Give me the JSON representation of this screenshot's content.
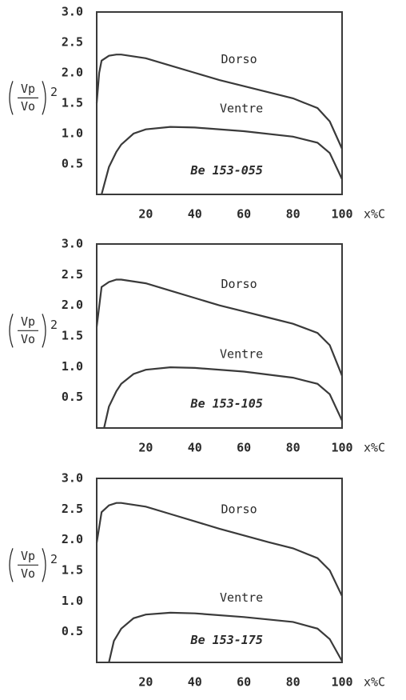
{
  "chart_data": [
    {
      "type": "line",
      "ylabel": {
        "numerator": "Vp",
        "denominator": "Vo",
        "exponent": "2"
      },
      "xlabel": "x%C",
      "annotation": "Be 153-055",
      "xlim": [
        0,
        100
      ],
      "xticks": [
        20,
        40,
        60,
        80,
        100
      ],
      "ylim": [
        0,
        3
      ],
      "yticks": [
        0.5,
        {
          "value": 1,
          "label": "1.0"
        },
        1.5,
        {
          "value": 2,
          "label": "2.0"
        },
        2.5,
        {
          "value": 3,
          "label": "3.0"
        }
      ],
      "series": [
        {
          "name": "Dorso",
          "color": "#3a3a3a",
          "x": [
            0,
            1,
            2,
            5,
            8,
            10,
            20,
            30,
            40,
            50,
            60,
            70,
            80,
            90,
            95,
            100
          ],
          "values": [
            1.5,
            2.0,
            2.2,
            2.28,
            2.3,
            2.3,
            2.24,
            2.12,
            2.0,
            1.88,
            1.78,
            1.68,
            1.58,
            1.42,
            1.2,
            0.75
          ]
        },
        {
          "name": "Ventre",
          "color": "#3a3a3a",
          "x": [
            2,
            5,
            8,
            10,
            15,
            20,
            30,
            40,
            60,
            80,
            90,
            95,
            100
          ],
          "values": [
            0,
            0.45,
            0.7,
            0.82,
            1.0,
            1.07,
            1.11,
            1.1,
            1.04,
            0.95,
            0.85,
            0.68,
            0.25
          ]
        }
      ]
    },
    {
      "type": "line",
      "ylabel": {
        "numerator": "Vp",
        "denominator": "Vo",
        "exponent": "2"
      },
      "xlabel": "x%C",
      "annotation": "Be 153-105",
      "xlim": [
        0,
        100
      ],
      "xticks": [
        20,
        40,
        60,
        80,
        100
      ],
      "ylim": [
        0,
        3
      ],
      "yticks": [
        0.5,
        {
          "value": 1,
          "label": "1.0"
        },
        1.5,
        {
          "value": 2,
          "label": "2.0"
        },
        2.5,
        {
          "value": 3,
          "label": "3.0"
        }
      ],
      "series": [
        {
          "name": "Dorso",
          "color": "#3a3a3a",
          "x": [
            0,
            2,
            5,
            8,
            10,
            20,
            30,
            40,
            50,
            60,
            70,
            80,
            90,
            95,
            100
          ],
          "values": [
            1.65,
            2.3,
            2.38,
            2.42,
            2.42,
            2.36,
            2.24,
            2.12,
            2.0,
            1.9,
            1.8,
            1.7,
            1.55,
            1.35,
            0.85
          ]
        },
        {
          "name": "Ventre",
          "color": "#3a3a3a",
          "x": [
            3,
            5,
            8,
            10,
            15,
            20,
            30,
            40,
            60,
            80,
            90,
            95,
            100
          ],
          "values": [
            0,
            0.35,
            0.6,
            0.72,
            0.88,
            0.95,
            0.99,
            0.98,
            0.92,
            0.82,
            0.72,
            0.55,
            0.12
          ]
        }
      ]
    },
    {
      "type": "line",
      "ylabel": {
        "numerator": "Vp",
        "denominator": "Vo",
        "exponent": "2"
      },
      "xlabel": "x%C",
      "annotation": "Be 153-175",
      "xlim": [
        0,
        100
      ],
      "xticks": [
        20,
        40,
        60,
        80,
        100
      ],
      "ylim": [
        0,
        3
      ],
      "yticks": [
        0.5,
        {
          "value": 1,
          "label": "1.0"
        },
        1.5,
        {
          "value": 2,
          "label": "2.0"
        },
        2.5,
        {
          "value": 3,
          "label": "3.0"
        }
      ],
      "series": [
        {
          "name": "Dorso",
          "color": "#3a3a3a",
          "x": [
            0,
            2,
            5,
            8,
            10,
            20,
            30,
            40,
            50,
            60,
            70,
            80,
            90,
            95,
            100
          ],
          "values": [
            1.95,
            2.45,
            2.56,
            2.6,
            2.6,
            2.54,
            2.42,
            2.3,
            2.18,
            2.07,
            1.96,
            1.86,
            1.7,
            1.5,
            1.08
          ]
        },
        {
          "name": "Ventre",
          "color": "#3a3a3a",
          "x": [
            5,
            7,
            10,
            15,
            20,
            30,
            40,
            60,
            80,
            90,
            95,
            100
          ],
          "values": [
            0,
            0.35,
            0.55,
            0.72,
            0.78,
            0.81,
            0.8,
            0.74,
            0.66,
            0.55,
            0.38,
            0.02
          ]
        }
      ]
    }
  ]
}
